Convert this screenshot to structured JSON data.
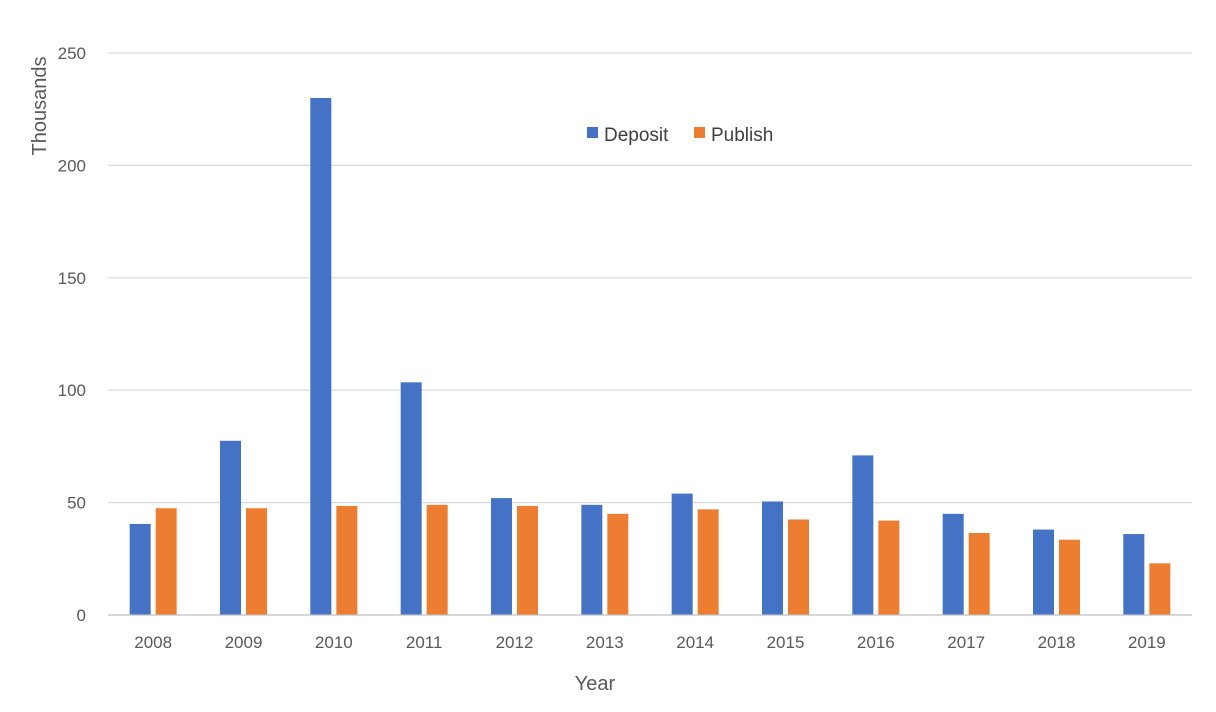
{
  "chart_data": {
    "type": "bar",
    "categories": [
      "2008",
      "2009",
      "2010",
      "2011",
      "2012",
      "2013",
      "2014",
      "2015",
      "2016",
      "2017",
      "2018",
      "2019"
    ],
    "series": [
      {
        "name": "Deposit",
        "color": "#4472C4",
        "values": [
          40.5,
          77.5,
          230,
          103.5,
          52,
          49,
          54,
          50.5,
          71,
          45,
          38,
          36
        ]
      },
      {
        "name": "Publish",
        "color": "#ED7D31",
        "values": [
          47.5,
          47.5,
          48.5,
          49,
          48.5,
          45,
          47,
          42.5,
          42,
          36.5,
          33.5,
          23
        ]
      }
    ],
    "xlabel": "Year",
    "ylabel": "Thousands",
    "ylim": [
      0,
      250
    ],
    "yticks": [
      "0",
      "50",
      "100",
      "150",
      "200",
      "250"
    ],
    "grid": true,
    "legend_position": "top-center"
  }
}
